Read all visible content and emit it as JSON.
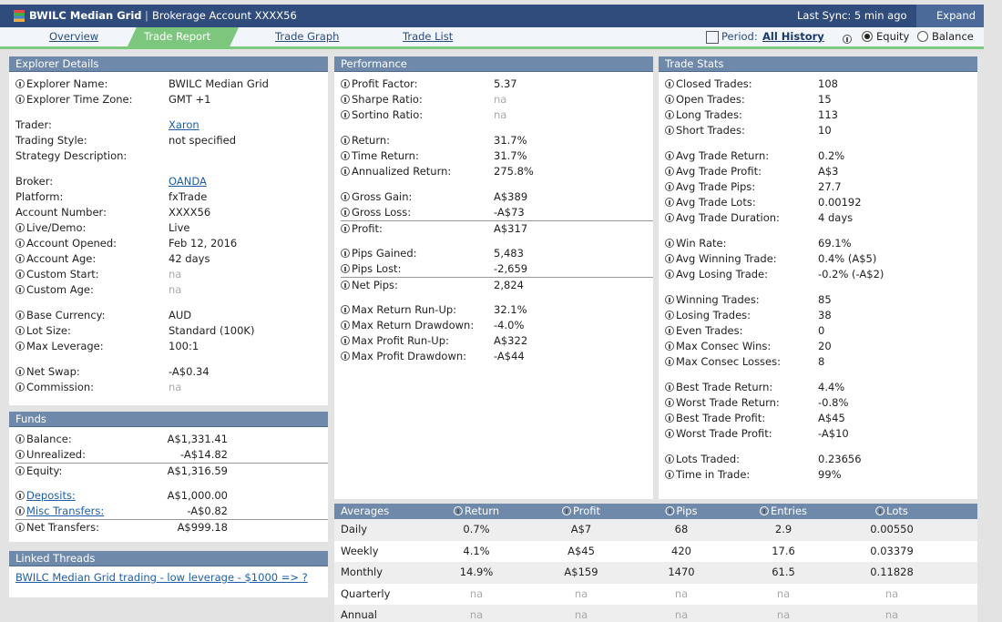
{
  "header": {
    "title": "BWILC Median Grid",
    "subtitle": "Brokerage Account XXXX56",
    "sync": "Last Sync: 5 min ago",
    "expand": "Expand"
  },
  "tabs": {
    "items": [
      "Overview",
      "Trade Report",
      "Trade Graph",
      "Trade List"
    ],
    "active": 1
  },
  "period": {
    "label": "Period:",
    "value": "All History",
    "options": [
      "Equity",
      "Balance"
    ],
    "selected": 0
  },
  "explorer": {
    "title": "Explorer Details",
    "groups": [
      [
        {
          "label": "Explorer Name:",
          "value": "BWILC Median Grid",
          "icon": true
        },
        {
          "label": "Explorer Time Zone:",
          "value": "GMT +1",
          "icon": true
        }
      ],
      [
        {
          "label": "Trader:",
          "value": "Xaron",
          "valueLink": true
        },
        {
          "label": "Trading Style:",
          "value": "not specified"
        },
        {
          "label": "Strategy Description:"
        }
      ],
      [
        {
          "label": "Broker:",
          "value": "OANDA",
          "valueLink": true
        },
        {
          "label": "Platform:",
          "value": "fxTrade"
        },
        {
          "label": "Account Number:",
          "value": "XXXX56"
        },
        {
          "label": "Live/Demo:",
          "value": "Live",
          "icon": true
        },
        {
          "label": "Account Opened:",
          "value": "Feb 12, 2016",
          "icon": true
        },
        {
          "label": "Account Age:",
          "value": "42 days",
          "icon": true
        },
        {
          "label": "Custom Start:",
          "value": "na",
          "icon": true,
          "muted": true
        },
        {
          "label": "Custom Age:",
          "value": "na",
          "icon": true,
          "muted": true
        }
      ],
      [
        {
          "label": "Base Currency:",
          "value": "AUD",
          "icon": true
        },
        {
          "label": "Lot Size:",
          "value": "Standard (100K)",
          "icon": true
        },
        {
          "label": "Max Leverage:",
          "value": "100:1",
          "icon": true
        }
      ],
      [
        {
          "label": "Net Swap:",
          "value": "-A$0.34",
          "icon": true
        },
        {
          "label": "Commission:",
          "value": "na",
          "icon": true,
          "muted": true
        }
      ]
    ]
  },
  "funds": {
    "title": "Funds",
    "groups": [
      [
        {
          "label": "Balance:",
          "value": "A$1,331.41",
          "icon": true
        },
        {
          "label": "Unrealized:",
          "value": "-A$14.82",
          "icon": true
        },
        {
          "label": "Equity:",
          "value": "A$1,316.59",
          "icon": true,
          "rule": true
        }
      ],
      [
        {
          "label": "Deposits:",
          "value": "A$1,000.00",
          "icon": true,
          "labelLink": true
        },
        {
          "label": "Misc Transfers:",
          "value": "-A$0.82",
          "icon": true,
          "labelLink": true
        },
        {
          "label": "Net Transfers:",
          "value": "A$999.18",
          "icon": true,
          "rule": true
        }
      ]
    ]
  },
  "threads": {
    "title": "Linked Threads",
    "links": [
      "BWILC Median Grid trading - low leverage - $1000 => ?"
    ]
  },
  "performance": {
    "title": "Performance",
    "groups": [
      [
        {
          "label": "Profit Factor:",
          "value": "5.37",
          "icon": true
        },
        {
          "label": "Sharpe Ratio:",
          "value": "na",
          "icon": true,
          "muted": true
        },
        {
          "label": "Sortino Ratio:",
          "value": "na",
          "icon": true,
          "muted": true
        }
      ],
      [
        {
          "label": "Return:",
          "value": "31.7%",
          "icon": true
        },
        {
          "label": "Time Return:",
          "value": "31.7%",
          "icon": true
        },
        {
          "label": "Annualized Return:",
          "value": "275.8%",
          "icon": true
        }
      ],
      [
        {
          "label": "Gross Gain:",
          "value": "A$389",
          "icon": true
        },
        {
          "label": "Gross Loss:",
          "value": "-A$73",
          "icon": true
        },
        {
          "label": "Profit:",
          "value": "A$317",
          "icon": true,
          "rule": true
        }
      ],
      [
        {
          "label": "Pips Gained:",
          "value": "5,483",
          "icon": true
        },
        {
          "label": "Pips Lost:",
          "value": "-2,659",
          "icon": true
        },
        {
          "label": "Net Pips:",
          "value": "2,824",
          "icon": true,
          "rule": true
        }
      ],
      [
        {
          "label": "Max Return Run-Up:",
          "value": "32.1%",
          "icon": true
        },
        {
          "label": "Max Return Drawdown:",
          "value": "-4.0%",
          "icon": true
        },
        {
          "label": "Max Profit Run-Up:",
          "value": "A$322",
          "icon": true
        },
        {
          "label": "Max Profit Drawdown:",
          "value": "-A$44",
          "icon": true
        }
      ]
    ]
  },
  "stats": {
    "title": "Trade Stats",
    "groups": [
      [
        {
          "label": "Closed Trades:",
          "value": "108",
          "icon": true
        },
        {
          "label": "Open Trades:",
          "value": "15",
          "icon": true
        },
        {
          "label": "Long Trades:",
          "value": "113",
          "icon": true
        },
        {
          "label": "Short Trades:",
          "value": "10",
          "icon": true
        }
      ],
      [
        {
          "label": "Avg Trade Return:",
          "value": "0.2%",
          "icon": true
        },
        {
          "label": "Avg Trade Profit:",
          "value": "A$3",
          "icon": true
        },
        {
          "label": "Avg Trade Pips:",
          "value": "27.7",
          "icon": true
        },
        {
          "label": "Avg Trade Lots:",
          "value": "0.00192",
          "icon": true
        },
        {
          "label": "Avg Trade Duration:",
          "value": "4 days",
          "icon": true
        }
      ],
      [
        {
          "label": "Win Rate:",
          "value": "69.1%",
          "icon": true
        },
        {
          "label": "Avg Winning Trade:",
          "value": "0.4% (A$5)",
          "icon": true
        },
        {
          "label": "Avg Losing Trade:",
          "value": "-0.2% (-A$2)",
          "icon": true
        }
      ],
      [
        {
          "label": "Winning Trades:",
          "value": "85",
          "icon": true
        },
        {
          "label": "Losing Trades:",
          "value": "38",
          "icon": true
        },
        {
          "label": "Even Trades:",
          "value": "0",
          "icon": true
        },
        {
          "label": "Max Consec Wins:",
          "value": "20",
          "icon": true
        },
        {
          "label": "Max Consec Losses:",
          "value": "8",
          "icon": true
        }
      ],
      [
        {
          "label": "Best Trade Return:",
          "value": "4.4%",
          "icon": true
        },
        {
          "label": "Worst Trade Return:",
          "value": "-0.8%",
          "icon": true
        },
        {
          "label": "Best Trade Profit:",
          "value": "A$45",
          "icon": true
        },
        {
          "label": "Worst Trade Profit:",
          "value": "-A$10",
          "icon": true
        }
      ],
      [
        {
          "label": "Lots Traded:",
          "value": "0.23656",
          "icon": true
        },
        {
          "label": "Time in Trade:",
          "value": "99%",
          "icon": true
        }
      ]
    ]
  },
  "averages": {
    "columns": [
      "Averages",
      "Return",
      "Profit",
      "Pips",
      "Entries",
      "Lots"
    ],
    "rows": [
      [
        "Daily",
        "0.7%",
        "A$7",
        "68",
        "2.9",
        "0.00550"
      ],
      [
        "Weekly",
        "4.1%",
        "A$45",
        "420",
        "17.6",
        "0.03379"
      ],
      [
        "Monthly",
        "14.9%",
        "A$159",
        "1470",
        "61.5",
        "0.11828"
      ],
      [
        "Quarterly",
        "na",
        "na",
        "na",
        "na",
        "na"
      ],
      [
        "Annual",
        "na",
        "na",
        "na",
        "na",
        "na"
      ]
    ]
  }
}
